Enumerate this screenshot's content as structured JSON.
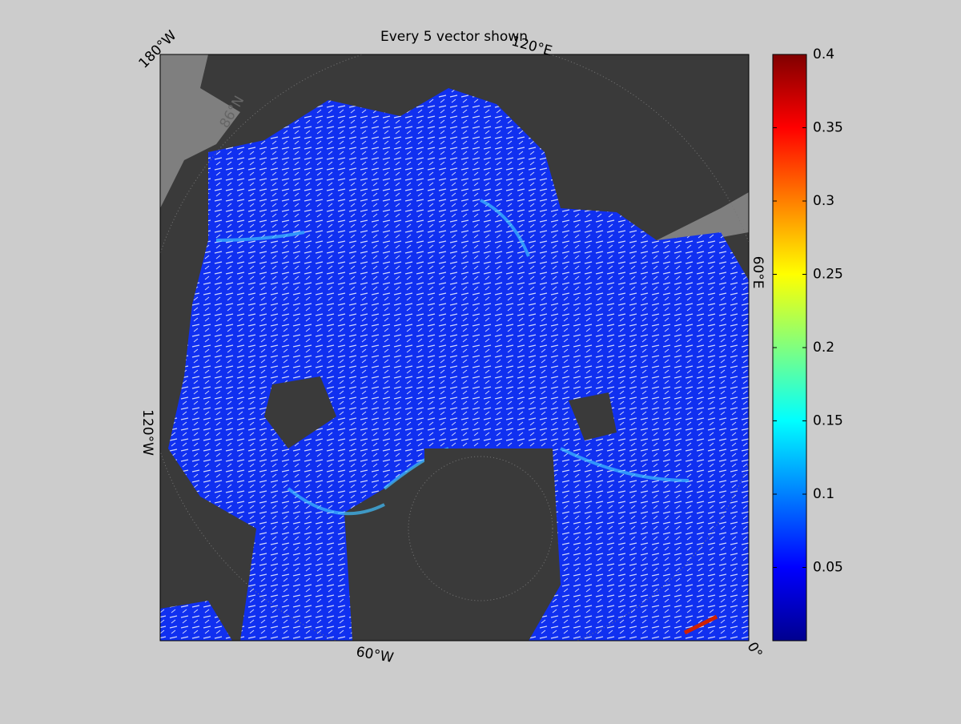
{
  "title": "Every 5 vector shown",
  "map": {
    "labels": [
      "180°W",
      "120°E",
      "60°E",
      "0°",
      "60°W",
      "120°W",
      "86°N"
    ]
  },
  "colorbar": {
    "lim": [
      0,
      0.4
    ],
    "ticks": [
      0.05,
      0.1,
      0.15,
      0.2,
      0.25,
      0.3,
      0.35,
      0.4
    ]
  }
}
